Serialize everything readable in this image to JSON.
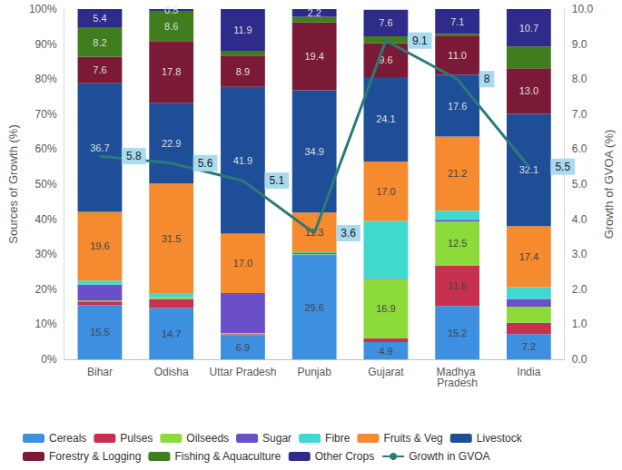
{
  "chart_data": {
    "type": "bar",
    "stacked": true,
    "data_labels": true,
    "legend": "bottom",
    "grid": false,
    "ylabel": "Sources of Growth (%)",
    "y2label": "Growth of GVOA (%)",
    "categories": [
      "Bihar",
      "Odisha",
      "Uttar Pradesh",
      "Punjab",
      "Gujarat",
      "Madhya Pradesh",
      "India"
    ],
    "ylim": [
      0,
      100
    ],
    "yticks": [
      {
        "value": 0,
        "label": "0%"
      },
      {
        "value": 10,
        "label": "10%"
      },
      {
        "value": 20,
        "label": "20%"
      },
      {
        "value": 30,
        "label": "30%"
      },
      {
        "value": 40,
        "label": "40%"
      },
      {
        "value": 50,
        "label": "50%"
      },
      {
        "value": 60,
        "label": "60%"
      },
      {
        "value": 70,
        "label": "70%"
      },
      {
        "value": 80,
        "label": "80%"
      },
      {
        "value": 90,
        "label": "90%"
      },
      {
        "value": 100,
        "label": "100%"
      }
    ],
    "y2lim": [
      0,
      10
    ],
    "y2ticks": [
      {
        "value": 0,
        "label": "0.0"
      },
      {
        "value": 1,
        "label": "1.0"
      },
      {
        "value": 2,
        "label": "2.0"
      },
      {
        "value": 3,
        "label": "3.0"
      },
      {
        "value": 4,
        "label": "4.0"
      },
      {
        "value": 5,
        "label": "5.0"
      },
      {
        "value": 6,
        "label": "6.0"
      },
      {
        "value": 7,
        "label": "7.0"
      },
      {
        "value": 8,
        "label": "8.0"
      },
      {
        "value": 9,
        "label": "9.0"
      },
      {
        "value": 10,
        "label": "10.0"
      }
    ],
    "series": [
      {
        "name": "Cereals",
        "color": "#3d8fe0",
        "values": [
          15.5,
          14.7,
          6.9,
          29.6,
          4.9,
          15.2,
          7.2
        ],
        "value_labels": [
          "15.5",
          "14.7",
          "6.9",
          "29.6",
          "4.9",
          "15.2",
          "7.2"
        ]
      },
      {
        "name": "Pulses",
        "color": "#c8304f",
        "values": [
          1.0,
          2.5,
          0.3,
          0.2,
          1.1,
          11.6,
          3.2
        ],
        "value_labels": [
          null,
          null,
          null,
          null,
          null,
          "11.6",
          null
        ]
      },
      {
        "name": "Oilseeds",
        "color": "#8ddb3a",
        "values": [
          0.3,
          0.5,
          0.3,
          0.2,
          16.9,
          12.5,
          4.6
        ],
        "value_labels": [
          null,
          null,
          null,
          null,
          "16.9",
          "12.5",
          null
        ]
      },
      {
        "name": "Sugar",
        "color": "#6a4fc8",
        "values": [
          4.5,
          0.0,
          11.4,
          0.3,
          0.2,
          0.5,
          2.2
        ],
        "value_labels": [
          null,
          null,
          null,
          null,
          null,
          null,
          null
        ]
      },
      {
        "name": "Fibre",
        "color": "#40d9cf",
        "values": [
          1.2,
          1.0,
          0.0,
          0.3,
          16.4,
          2.6,
          3.4
        ],
        "value_labels": [
          null,
          null,
          null,
          null,
          null,
          null,
          null
        ]
      },
      {
        "name": "Fruits & Veg",
        "color": "#f58a2e",
        "values": [
          19.6,
          31.5,
          17.0,
          11.3,
          17.0,
          21.2,
          17.4
        ],
        "value_labels": [
          "19.6",
          "31.5",
          "17.0",
          "11.3",
          "17.0",
          "21.2",
          "17.4"
        ]
      },
      {
        "name": "Livestock",
        "color": "#1f4e99",
        "values": [
          36.7,
          22.9,
          41.9,
          34.9,
          24.1,
          17.6,
          32.1
        ],
        "value_labels": [
          "36.7",
          "22.9",
          "41.9",
          "34.9",
          "24.1",
          "17.6",
          "32.1"
        ]
      },
      {
        "name": "Forestry & Logging",
        "color": "#7b1a36",
        "values": [
          7.6,
          17.8,
          8.9,
          19.4,
          9.6,
          11.0,
          13.0
        ],
        "value_labels": [
          "7.6",
          "17.8",
          "8.9",
          "19.4",
          "9.6",
          "11.0",
          "13.0"
        ]
      },
      {
        "name": "Fishing & Aquaculture",
        "color": "#3f7d1d",
        "values": [
          8.2,
          8.6,
          1.4,
          1.6,
          2.0,
          0.7,
          6.2
        ],
        "value_labels": [
          "8.2",
          "8.6",
          null,
          null,
          null,
          null,
          null
        ]
      },
      {
        "name": "Other Crops",
        "color": "#2e2b8a",
        "values": [
          5.4,
          0.5,
          11.9,
          2.2,
          7.6,
          7.1,
          10.7
        ],
        "value_labels": [
          "5.4",
          "0.5",
          "11.9",
          "2.2",
          "7.6",
          "7.1",
          "10.7"
        ]
      },
      {
        "name": "Growth in GVOA",
        "type": "line",
        "axis": "y2",
        "color": "#2b7a78",
        "values": [
          5.8,
          5.6,
          5.1,
          3.6,
          9.1,
          8.0,
          5.5
        ]
      }
    ]
  }
}
